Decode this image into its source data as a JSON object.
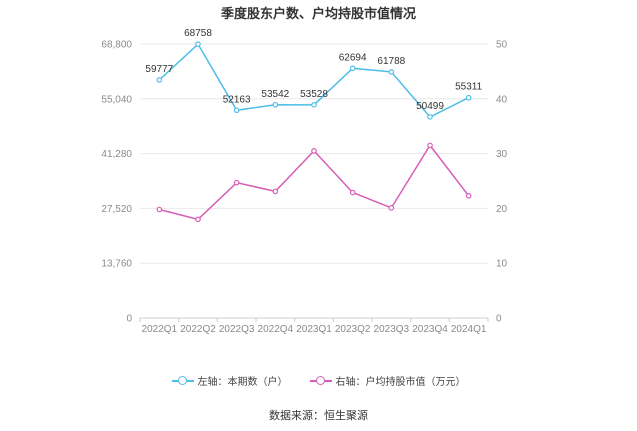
{
  "title": "季度股东户数、户均持股市值情况",
  "source": "数据来源：恒生聚源",
  "legend": {
    "left_label": "左轴：本期数（户）",
    "right_label": "右轴：户均持股市值（万元）"
  },
  "colors": {
    "holders": "#4fbde8",
    "value": "#d65fb6"
  },
  "chart_data": {
    "type": "line",
    "categories": [
      "2022Q1",
      "2022Q2",
      "2022Q3",
      "2022Q4",
      "2023Q1",
      "2023Q2",
      "2023Q3",
      "2023Q4",
      "2024Q1"
    ],
    "left_axis": {
      "ylim": [
        0,
        68800
      ],
      "ticks": [
        "0",
        "13,760",
        "27,520",
        "41,280",
        "55,040",
        "68,800"
      ]
    },
    "right_axis": {
      "ylim": [
        0,
        50
      ],
      "ticks": [
        "0",
        "10",
        "20",
        "30",
        "40",
        "50"
      ]
    },
    "series": [
      {
        "name": "左轴：本期数（户）",
        "axis": "left",
        "values": [
          59777,
          68758,
          52163,
          53542,
          53528,
          62694,
          61788,
          50499,
          55311
        ],
        "labels": [
          "59777",
          "68758",
          "52163",
          "53542",
          "53528",
          "62694",
          "61788",
          "50499",
          "55311"
        ]
      },
      {
        "name": "右轴：户均持股市值（万元）",
        "axis": "right",
        "values": [
          19.8,
          18.0,
          24.7,
          23.1,
          30.5,
          22.9,
          20.1,
          31.5,
          22.3
        ]
      }
    ],
    "grid": true
  }
}
